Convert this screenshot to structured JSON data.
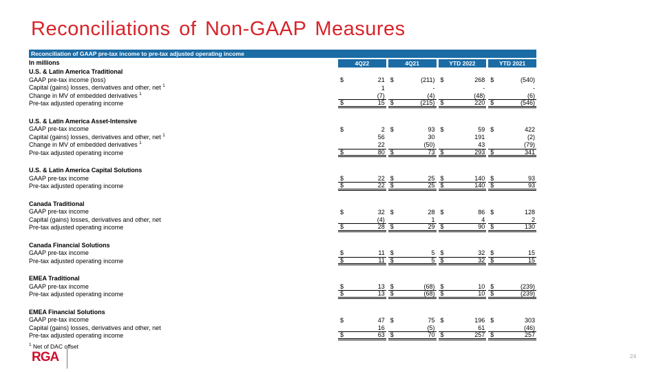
{
  "page": {
    "title": "Reconciliations of Non-GAAP Measures",
    "page_number": "24",
    "logo_text": "RGA"
  },
  "colors": {
    "title_red": "#D8232A",
    "table_blue": "#1B6CA5",
    "logo_red": "#CE0E2D"
  },
  "table": {
    "header_bar": "Reconciliation of GAAP pre-tax income to pre-tax adjusted operating income",
    "unit_label": "In millions",
    "columns": [
      "4Q22",
      "4Q21",
      "YTD 2022",
      "YTD 2021"
    ],
    "footnote_marker": "1",
    "footnote_text": "Net of DAC offset",
    "sections": [
      {
        "name": "U.S. & Latin America Traditional",
        "rows": [
          {
            "label": "GAAP pre-tax income (loss)",
            "sup": "",
            "dollar": true,
            "values": [
              "21",
              "(211)",
              "268",
              "(540)"
            ],
            "style": "none"
          },
          {
            "label": "Capital (gains) losses, derivatives and other, net",
            "sup": "1",
            "dollar": false,
            "values": [
              "1",
              "-",
              "-",
              "-"
            ],
            "style": "none"
          },
          {
            "label": "Change in MV of embedded derivatives",
            "sup": "1",
            "dollar": false,
            "values": [
              "(7)",
              "(4)",
              "(48)",
              "(6)"
            ],
            "style": "rule"
          },
          {
            "label": "Pre-tax adjusted operating income",
            "sup": "",
            "dollar": true,
            "values": [
              "15",
              "(215)",
              "220",
              "(546)"
            ],
            "style": "total"
          }
        ]
      },
      {
        "name": "U.S. & Latin America Asset-Intensive",
        "rows": [
          {
            "label": "GAAP pre-tax income",
            "sup": "",
            "dollar": true,
            "values": [
              "2",
              "93",
              "59",
              "422"
            ],
            "style": "none"
          },
          {
            "label": "Capital (gains) losses, derivatives and other, net",
            "sup": "1",
            "dollar": false,
            "values": [
              "56",
              "30",
              "191",
              "(2)"
            ],
            "style": "none"
          },
          {
            "label": "Change in MV of embedded derivatives",
            "sup": "1",
            "dollar": false,
            "values": [
              "22",
              "(50)",
              "43",
              "(79)"
            ],
            "style": "rule"
          },
          {
            "label": "Pre-tax adjusted operating income",
            "sup": "",
            "dollar": true,
            "values": [
              "80",
              "73",
              "293",
              "341"
            ],
            "style": "total"
          }
        ]
      },
      {
        "name": "U.S. & Latin America Capital Solutions",
        "rows": [
          {
            "label": "GAAP pre-tax income",
            "sup": "",
            "dollar": true,
            "values": [
              "22",
              "25",
              "140",
              "93"
            ],
            "style": "rule"
          },
          {
            "label": "Pre-tax adjusted operating income",
            "sup": "",
            "dollar": true,
            "values": [
              "22",
              "25",
              "140",
              "93"
            ],
            "style": "total"
          }
        ]
      },
      {
        "name": "Canada Traditional",
        "rows": [
          {
            "label": "GAAP pre-tax income",
            "sup": "",
            "dollar": true,
            "values": [
              "32",
              "28",
              "86",
              "128"
            ],
            "style": "none"
          },
          {
            "label": "Capital (gains) losses, derivatives and other, net",
            "sup": "",
            "dollar": false,
            "values": [
              "(4)",
              "1",
              "4",
              "2"
            ],
            "style": "rule"
          },
          {
            "label": "Pre-tax adjusted operating income",
            "sup": "",
            "dollar": true,
            "values": [
              "28",
              "29",
              "90",
              "130"
            ],
            "style": "total"
          }
        ]
      },
      {
        "name": "Canada Financial Solutions",
        "rows": [
          {
            "label": "GAAP pre-tax income",
            "sup": "",
            "dollar": true,
            "values": [
              "11",
              "5",
              "32",
              "15"
            ],
            "style": "rule"
          },
          {
            "label": "Pre-tax adjusted operating income",
            "sup": "",
            "dollar": true,
            "values": [
              "11",
              "5",
              "32",
              "15"
            ],
            "style": "total"
          }
        ]
      },
      {
        "name": "EMEA Traditional",
        "rows": [
          {
            "label": "GAAP pre-tax income",
            "sup": "",
            "dollar": true,
            "values": [
              "13",
              "(68)",
              "10",
              "(239)"
            ],
            "style": "rule"
          },
          {
            "label": "Pre-tax adjusted operating income",
            "sup": "",
            "dollar": true,
            "values": [
              "13",
              "(68)",
              "10",
              "(239)"
            ],
            "style": "total"
          }
        ]
      },
      {
        "name": "EMEA Financial Solutions",
        "rows": [
          {
            "label": "GAAP pre-tax income",
            "sup": "",
            "dollar": true,
            "values": [
              "47",
              "75",
              "196",
              "303"
            ],
            "style": "none"
          },
          {
            "label": "Capital (gains) losses, derivatives and other, net",
            "sup": "",
            "dollar": false,
            "values": [
              "16",
              "(5)",
              "61",
              "(46)"
            ],
            "style": "rule"
          },
          {
            "label": "Pre-tax adjusted operating income",
            "sup": "",
            "dollar": true,
            "values": [
              "63",
              "70",
              "257",
              "257"
            ],
            "style": "total"
          }
        ]
      }
    ]
  }
}
